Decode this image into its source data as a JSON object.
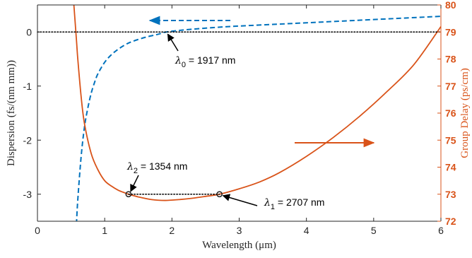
{
  "chart_data": {
    "type": "line",
    "xlabel": "Wavelength (μm)",
    "ylabel_left": "Dispersion (fs/(nm mm))",
    "ylabel_right": "Group Delay (ps/cm)",
    "xlim": [
      0,
      6
    ],
    "ylim_left": [
      -3.5,
      0.5
    ],
    "ylim_right": [
      72,
      80
    ],
    "x_ticks": [
      "0",
      "1",
      "2",
      "3",
      "4",
      "5",
      "6"
    ],
    "y_left_ticks": [
      {
        "value": 0,
        "label": "0"
      },
      {
        "value": -1,
        "label": "-1"
      },
      {
        "value": -2,
        "label": "-2"
      },
      {
        "value": -3,
        "label": "-3"
      }
    ],
    "y_right_ticks": [
      "72",
      "73",
      "74",
      "75",
      "76",
      "77",
      "78",
      "79",
      "80"
    ],
    "grid": false,
    "colors": {
      "dispersion": "#0072BD",
      "group_delay": "#D95319",
      "axis": "#262626",
      "annotation": "#000000"
    },
    "series": [
      {
        "axis": "left",
        "style": "dashed",
        "color": "#0072BD",
        "x": [
          0.58,
          0.6,
          0.65,
          0.7,
          0.75,
          0.8,
          0.85,
          0.9,
          1.0,
          1.1,
          1.2,
          1.3,
          1.4,
          1.6,
          1.8,
          1.917,
          2.2,
          2.6,
          3.0,
          3.5,
          4.0,
          4.5,
          5.0,
          5.5,
          6.0
        ],
        "y": [
          -3.55,
          -3.1,
          -2.3,
          -1.75,
          -1.4,
          -1.13,
          -0.93,
          -0.77,
          -0.56,
          -0.42,
          -0.32,
          -0.24,
          -0.18,
          -0.1,
          -0.04,
          0.0,
          0.04,
          0.08,
          0.11,
          0.14,
          0.17,
          0.2,
          0.23,
          0.26,
          0.29
        ]
      },
      {
        "axis": "right",
        "style": "solid",
        "color": "#D95319",
        "x": [
          0.53,
          0.58,
          0.6,
          0.65,
          0.7,
          0.8,
          0.9,
          1.0,
          1.1,
          1.2,
          1.3,
          1.354,
          1.5,
          1.7,
          1.9,
          2.1,
          2.3,
          2.5,
          2.707,
          3.0,
          3.3,
          3.6,
          4.0,
          4.4,
          4.8,
          5.2,
          5.6,
          6.0
        ],
        "y": [
          80.4,
          78.7,
          78.0,
          76.6,
          75.6,
          74.5,
          73.9,
          73.5,
          73.3,
          73.15,
          73.05,
          73.0,
          72.9,
          72.8,
          72.77,
          72.8,
          72.85,
          72.92,
          73.0,
          73.2,
          73.45,
          73.8,
          74.4,
          75.1,
          75.9,
          76.8,
          77.8,
          79.2
        ]
      }
    ],
    "reference_lines": [
      {
        "axis": "left",
        "y": 0,
        "x": [
          0,
          6
        ],
        "style": "dotted"
      },
      {
        "axis": "left",
        "y": -3,
        "x": [
          1.354,
          2.707
        ],
        "style": "dotted"
      }
    ],
    "markers": [
      {
        "axis": "left",
        "x": 1.354,
        "y": -3
      },
      {
        "axis": "left",
        "x": 2.707,
        "y": -3
      }
    ],
    "annotations": [
      {
        "sym": "λ",
        "sub": "0",
        "value": "= 1917 nm"
      },
      {
        "sym": "λ",
        "sub": "2",
        "value": "= 1354 nm"
      },
      {
        "sym": "λ",
        "sub": "1",
        "value": "= 2707 nm"
      }
    ]
  }
}
